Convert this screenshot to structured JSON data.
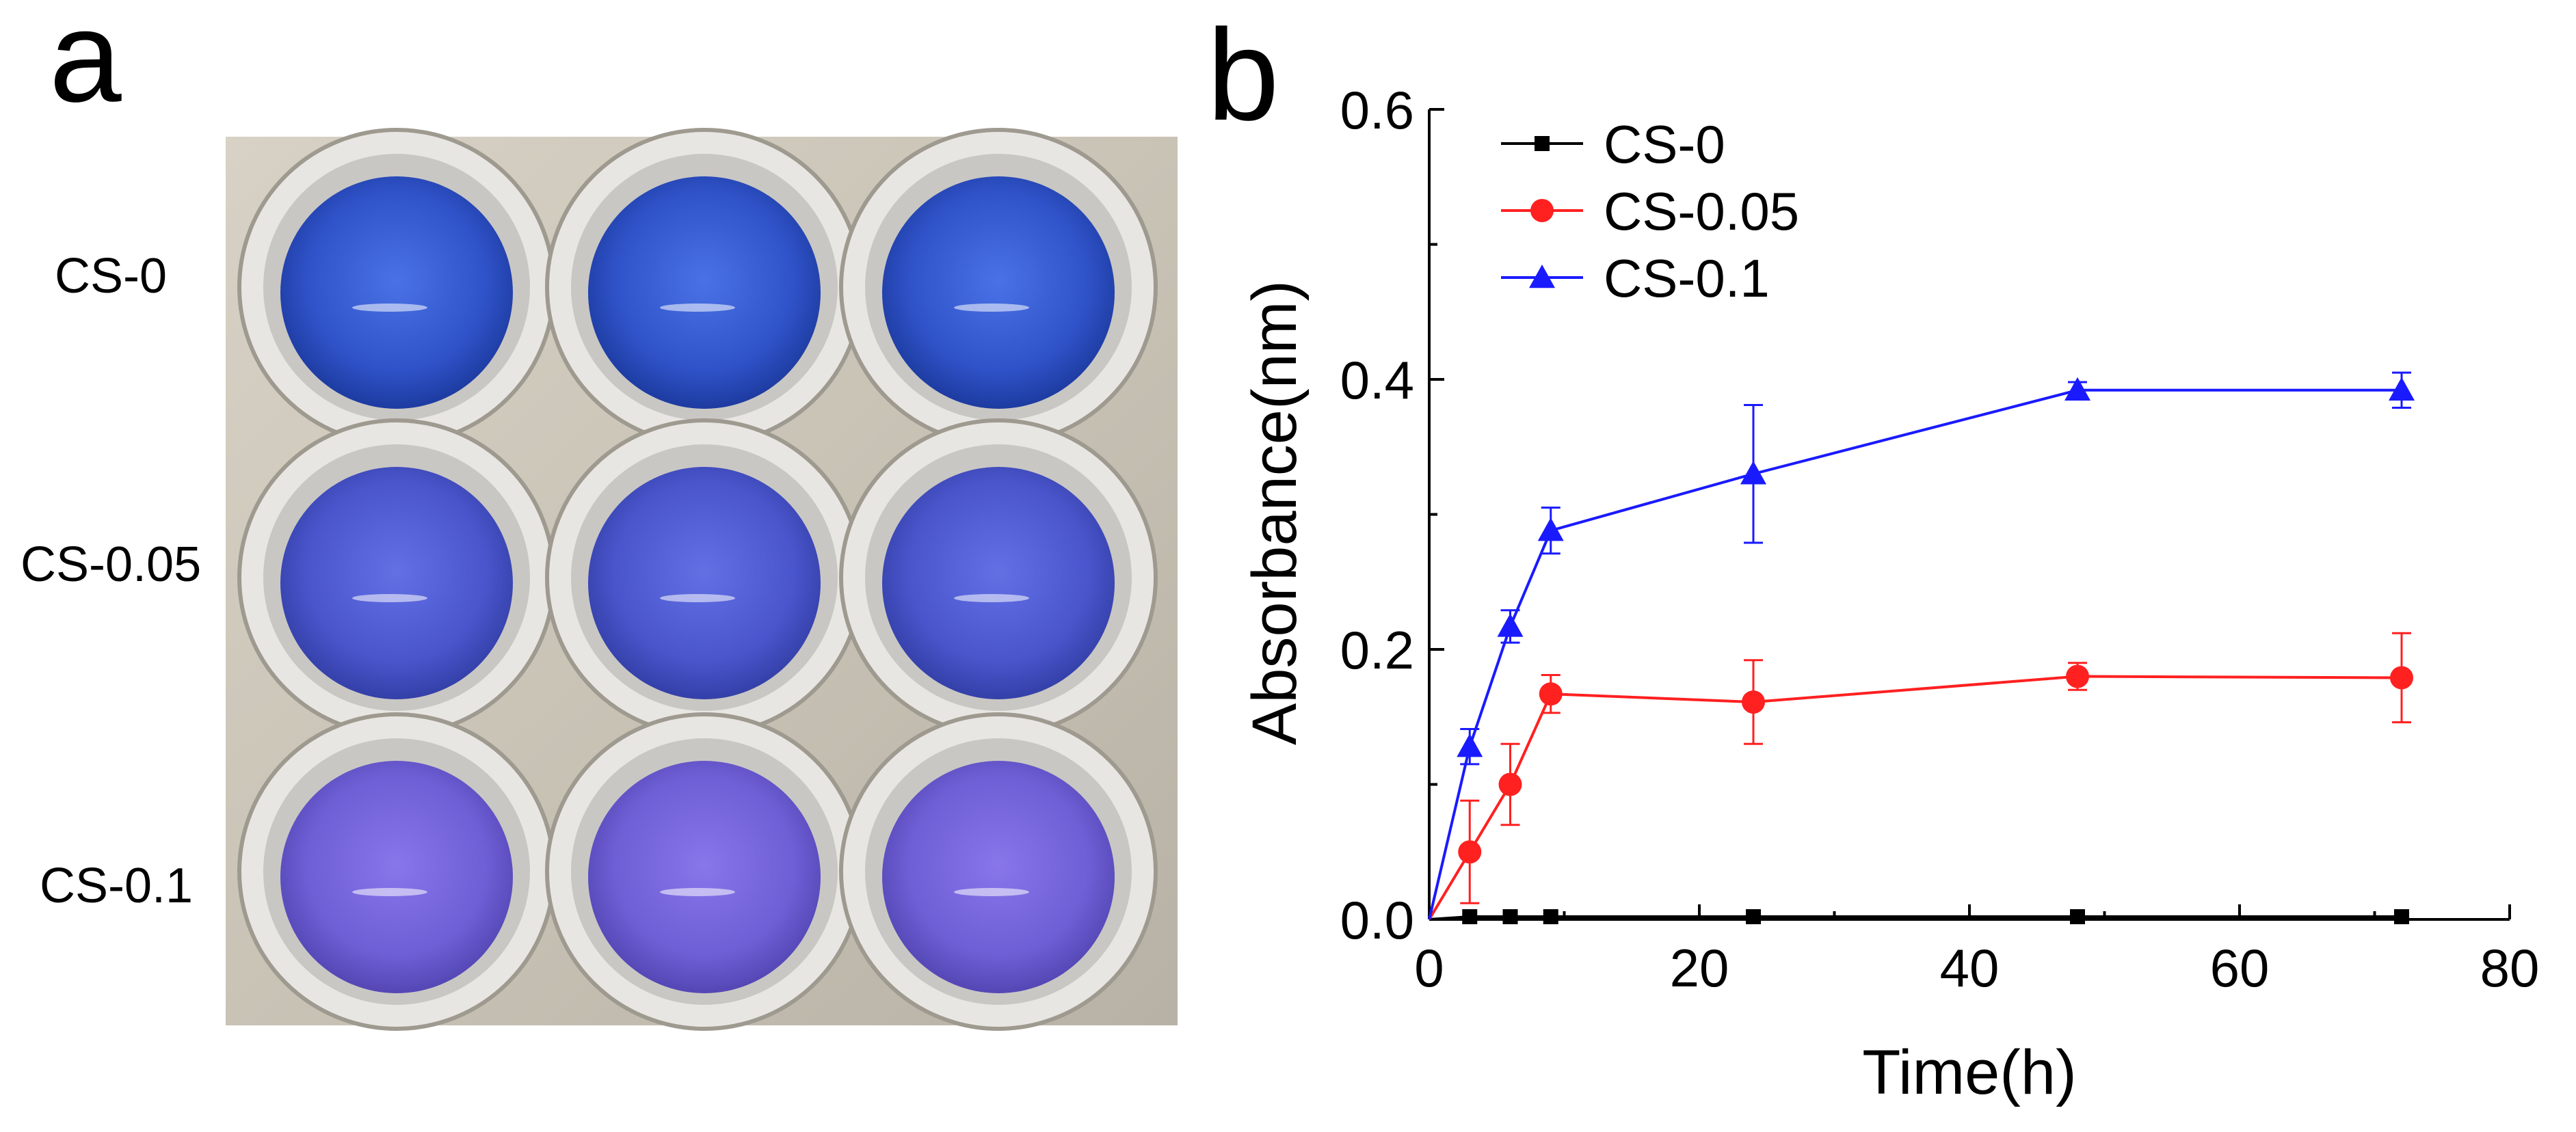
{
  "panels": {
    "a": {
      "label": "a",
      "row_labels": [
        "CS-0",
        "CS-0.05",
        "CS-0.1"
      ],
      "well_colors": [
        "#3b5fd4",
        "#5560d6",
        "#7a66e0"
      ]
    },
    "b": {
      "label": "b"
    }
  },
  "chart_data": {
    "type": "line",
    "title": "",
    "xlabel": "Time(h)",
    "ylabel": "Absorbance(nm)",
    "xlim": [
      0,
      80
    ],
    "ylim": [
      0,
      0.6
    ],
    "xticks": [
      "0",
      "20",
      "40",
      "60",
      "80"
    ],
    "yticks": [
      "0.0",
      "0.2",
      "0.4",
      "0.6"
    ],
    "xtick_values": [
      0,
      20,
      40,
      60,
      80
    ],
    "ytick_values": [
      0,
      0.2,
      0.4,
      0.6
    ],
    "legend_position": "top-left",
    "x": [
      0,
      3,
      6,
      9,
      24,
      48,
      72
    ],
    "series": [
      {
        "name": "CS-0",
        "color": "#000000",
        "marker": "square",
        "values": [
          0.0,
          0.002,
          0.002,
          0.002,
          0.002,
          0.002,
          0.002
        ],
        "errors": [
          0,
          0,
          0,
          0,
          0,
          0,
          0
        ]
      },
      {
        "name": "CS-0.05",
        "color": "#ff2020",
        "marker": "circle",
        "values": [
          0.0,
          0.05,
          0.1,
          0.167,
          0.161,
          0.18,
          0.179
        ],
        "errors": [
          0,
          0.038,
          0.03,
          0.014,
          0.031,
          0.01,
          0.033
        ]
      },
      {
        "name": "CS-0.1",
        "color": "#1a1aff",
        "marker": "triangle",
        "values": [
          0.0,
          0.128,
          0.217,
          0.288,
          0.33,
          0.392,
          0.392
        ],
        "errors": [
          0,
          0.013,
          0.012,
          0.017,
          0.051,
          0.006,
          0.013
        ]
      }
    ]
  }
}
